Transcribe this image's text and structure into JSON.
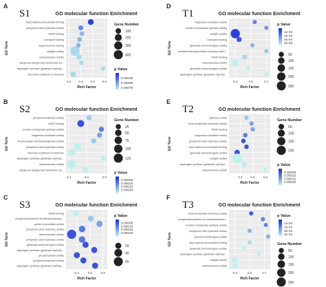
{
  "colors": {
    "panel_bg": "#ebebeb",
    "grid": "#ffffff",
    "pvalue_low": "#1a2bd4",
    "pvalue_high": "#bff0ef",
    "text": "#333333"
  },
  "chart_data": [
    {
      "type": "scatter",
      "panel": "A",
      "sample": "S1",
      "title": "GO molecular function Enrichment",
      "xlabel": "Rich Factor",
      "ylabel": "GO Term",
      "xlim": [
        0.15,
        0.85
      ],
      "xticks": [
        "0.2",
        "0.4",
        "0.6",
        "0.8"
      ],
      "xtick_values": [
        0.2,
        0.4,
        0.6,
        0.8
      ],
      "categories": [
        "flavin adenine dinucleotide binding",
        "phosphoric ester hydrolase activity",
        "NADP binding",
        "coenzyme binding",
        "magnesium ion binding",
        "catalytic activity",
        "oxidoreductase activity",
        "xyloglucan:xyloglucosyl transferase act...",
        "asparagine synthase (glutamine-hydrolyz...",
        "structural constituent of ribosome"
      ],
      "points": [
        {
          "term": "flavin adenine dinucleotide binding",
          "rich_factor": 0.57,
          "gene_number": 120,
          "p_value": 0.0001
        },
        {
          "term": "phosphoric ester hydrolase activity",
          "rich_factor": 0.4,
          "gene_number": 70,
          "p_value": 0.0004
        },
        {
          "term": "NADP binding",
          "rich_factor": 0.42,
          "gene_number": 60,
          "p_value": 0.0006
        },
        {
          "term": "coenzyme binding",
          "rich_factor": 0.38,
          "gene_number": 60,
          "p_value": 0.0006
        },
        {
          "term": "magnesium ion binding",
          "rich_factor": 0.36,
          "gene_number": 60,
          "p_value": 0.0006
        },
        {
          "term": "catalytic activity",
          "rich_factor": 0.3,
          "gene_number": 430,
          "p_value": 0.00075
        },
        {
          "term": "oxidoreductase activity",
          "rich_factor": 0.37,
          "gene_number": 80,
          "p_value": 0.00075
        },
        {
          "term": "xyloglucan:xyloglucosyl transferase act...",
          "rich_factor": 0.41,
          "gene_number": 50,
          "p_value": 0.00075
        },
        {
          "term": "asparagine synthase (glutamine-hydrolyz...",
          "rich_factor": 0.78,
          "gene_number": 40,
          "p_value": 0.00075
        },
        {
          "term": "structural constituent of ribosome",
          "rich_factor": 0.27,
          "gene_number": 100,
          "p_value": 0.00075
        }
      ],
      "legend_order": [
        "size",
        "color"
      ],
      "size_legend": {
        "title": "Gene Number",
        "labels": [
          "100",
          "200",
          "300",
          "400"
        ],
        "values": [
          100,
          200,
          300,
          400
        ]
      },
      "color_legend": {
        "title": "p Value",
        "labels": [
          "0.00075",
          "0.00050",
          "0.00025"
        ],
        "values": [
          0.00075,
          0.0005,
          0.00025
        ],
        "range": [
          0,
          0.00085
        ]
      }
    },
    {
      "type": "scatter",
      "panel": "B",
      "sample": "S2",
      "title": "GO molecular function Enrichment",
      "xlabel": "Rich Factor",
      "ylabel": "GO Term",
      "xlim": [
        0.25,
        0.95
      ],
      "xticks": [
        "0.3",
        "0.6",
        "0.9"
      ],
      "xtick_values": [
        0.3,
        0.6,
        0.9
      ],
      "categories": [
        "phosphofructokinase activity",
        "NADP binding",
        "inositol-3-phosphate synthase activity",
        "magnesium chelatase activity",
        "3-hydroxyacyl-CoA dehydrogenase activity",
        "phosphoric ester hydrolase activity",
        "structural constituent of ribosome",
        "asparagine synthase (glutamine-hydrolyz...",
        "oxidoreductase activity",
        "xyloglucan:xyloglucosyl transferase act..."
      ],
      "points": [
        {
          "term": "phosphofructokinase activity",
          "rich_factor": 0.64,
          "gene_number": 25,
          "p_value": 0.0002
        },
        {
          "term": "NADP binding",
          "rich_factor": 0.5,
          "gene_number": 60,
          "p_value": 5e-05
        },
        {
          "term": "inositol-3-phosphate synthase activity",
          "rich_factor": 0.85,
          "gene_number": 25,
          "p_value": 0.0001
        },
        {
          "term": "magnesium chelatase activity",
          "rich_factor": 0.82,
          "gene_number": 25,
          "p_value": 0.00015
        },
        {
          "term": "3-hydroxyacyl-CoA dehydrogenase activity",
          "rich_factor": 0.72,
          "gene_number": 25,
          "p_value": 0.0002
        },
        {
          "term": "phosphoric ester hydrolase activity",
          "rich_factor": 0.45,
          "gene_number": 60,
          "p_value": 0.00025
        },
        {
          "term": "structural constituent of ribosome",
          "rich_factor": 0.35,
          "gene_number": 70,
          "p_value": 0.00025
        },
        {
          "term": "asparagine synthase (glutamine-hydrolyz...",
          "rich_factor": 0.88,
          "gene_number": 25,
          "p_value": 0.00025
        },
        {
          "term": "oxidoreductase activity",
          "rich_factor": 0.34,
          "gene_number": 125,
          "p_value": 0.00025
        },
        {
          "term": "xyloglucan:xyloglucosyl transferase act...",
          "rich_factor": 0.58,
          "gene_number": 40,
          "p_value": 0.00025
        }
      ],
      "legend_order": [
        "size",
        "color"
      ],
      "size_legend": {
        "title": "Gene Number",
        "labels": [
          "25",
          "50",
          "75",
          "100",
          "125"
        ],
        "values": [
          25,
          50,
          75,
          100,
          125
        ]
      },
      "color_legend": {
        "title": "p Value",
        "labels": [
          "0.00020",
          "0.00015",
          "0.00010",
          "0.00005"
        ],
        "values": [
          0.0002,
          0.00015,
          0.0001,
          5e-05
        ],
        "range": [
          0,
          0.00025
        ]
      }
    },
    {
      "type": "scatter",
      "panel": "C",
      "sample": "S3",
      "title": "GO molecular function Enrichment",
      "xlabel": "Rich Factor",
      "ylabel": "GO Term",
      "xlim": [
        0.05,
        1.0
      ],
      "xticks": [
        "0.3",
        "0.6",
        "0.9"
      ],
      "xtick_values": [
        0.3,
        0.6,
        0.9
      ],
      "categories": [
        "NADP binding",
        "phosphoribosylamine-N-methyltransferase...",
        "purine homeostasis activity",
        "phosphoric ester hydrolase activity",
        "oxidoreductase activity",
        "phosphoric ester hydrolase activity",
        "glutamate-ammonia ligase activity",
        "asparagine synthase (glutamine-hydrolyz...",
        "phosphoprotein activity",
        "phosphofructokinase activity",
        "asparagine synthase (glutamine-hydrolyz..."
      ],
      "points": [
        {
          "term": "NADP binding",
          "rich_factor": 0.28,
          "gene_number": 25,
          "p_value": 0.00025
        },
        {
          "term": "phosphoribosylamine-N-methyltransferase...",
          "rich_factor": 0.62,
          "gene_number": 20,
          "p_value": 0.0002
        },
        {
          "term": "purine homeostasis activity",
          "rich_factor": 0.82,
          "gene_number": 20,
          "p_value": 0.00015
        },
        {
          "term": "phosphoric ester hydrolase activity",
          "rich_factor": 0.42,
          "gene_number": 25,
          "p_value": 0.0001
        },
        {
          "term": "oxidoreductase activity",
          "rich_factor": 0.18,
          "gene_number": 60,
          "p_value": 5e-05
        },
        {
          "term": "phosphoric ester hydrolase activity",
          "rich_factor": 0.42,
          "gene_number": 25,
          "p_value": 0.0001
        },
        {
          "term": "glutamate-ammonia ligase activity",
          "rich_factor": 0.5,
          "gene_number": 20,
          "p_value": 5e-05
        },
        {
          "term": "asparagine synthase (glutamine-hydrolyz...",
          "rich_factor": 0.7,
          "gene_number": 20,
          "p_value": 5e-05
        },
        {
          "term": "phosphoprotein activity",
          "rich_factor": 0.3,
          "gene_number": 20,
          "p_value": 5e-05
        },
        {
          "term": "phosphofructokinase activity",
          "rich_factor": 0.45,
          "gene_number": 20,
          "p_value": 5e-05
        },
        {
          "term": "asparagine synthase (glutamine-hydrolyz...",
          "rich_factor": 0.72,
          "gene_number": 20,
          "p_value": 5e-05
        }
      ],
      "legend_order": [
        "color",
        "size"
      ],
      "size_legend": {
        "title": "",
        "labels": [
          "20",
          "40",
          "60"
        ],
        "values": [
          20,
          40,
          60
        ]
      },
      "color_legend": {
        "title": "p Value",
        "labels": [
          "0.00020",
          "0.00015",
          "0.00010",
          "0.00005"
        ],
        "values": [
          0.0002,
          0.00015,
          0.0001,
          5e-05
        ],
        "range": [
          0,
          0.00025
        ]
      }
    },
    {
      "type": "scatter",
      "panel": "D",
      "sample": "T1",
      "title": "GO molecular function Enrichment",
      "xlabel": "Rich Factor",
      "ylabel": "GO Term",
      "xlim": [
        0.22,
        0.75
      ],
      "xticks": [
        "0.3",
        "0.5",
        "0.7"
      ],
      "xtick_values": [
        0.3,
        0.5,
        0.7
      ],
      "categories": [
        "magnesium chelatase activity",
        "inositol-3-phosphate synthase activity",
        "catalytic activity",
        "coenzyme binding",
        "glutamate-ammonia ligase activity",
        "methylenetetrahydrofolate reductase (NAD...",
        "NADP binding",
        "oxidoreductase activity",
        "glutamate-ammonia ligase activity",
        "asparagine synthase (glutamine-hydrolyz..."
      ],
      "points": [
        {
          "term": "magnesium chelatase activity",
          "rich_factor": 0.55,
          "gene_number": 25,
          "p_value": 0.0002
        },
        {
          "term": "inositol-3-phosphate synthase activity",
          "rich_factor": 0.7,
          "gene_number": 25,
          "p_value": 0.00025
        },
        {
          "term": "catalytic activity",
          "rich_factor": 0.3,
          "gene_number": 260,
          "p_value": 5e-05
        },
        {
          "term": "coenzyme binding",
          "rich_factor": 0.35,
          "gene_number": 50,
          "p_value": 0.0001
        },
        {
          "term": "glutamate-ammonia ligase activity",
          "rich_factor": 0.52,
          "gene_number": 25,
          "p_value": 0.0003
        },
        {
          "term": "methylenetetrahydrofolate reductase (NAD...",
          "rich_factor": 0.7,
          "gene_number": 25,
          "p_value": 0.00035
        },
        {
          "term": "NADP binding",
          "rich_factor": 0.42,
          "gene_number": 50,
          "p_value": 0.0004
        },
        {
          "term": "oxidoreductase activity",
          "rich_factor": 0.3,
          "gene_number": 120,
          "p_value": 0.00045
        },
        {
          "term": "glutamate-ammonia ligase activity",
          "rich_factor": 0.47,
          "gene_number": 25,
          "p_value": 0.00045
        },
        {
          "term": "asparagine synthase (glutamine-hydrolyz...",
          "rich_factor": 0.7,
          "gene_number": 25,
          "p_value": 0.00045
        }
      ],
      "legend_order": [
        "color",
        "size"
      ],
      "size_legend": {
        "title": "",
        "labels": [
          "50",
          "100",
          "150",
          "200",
          "250"
        ],
        "values": [
          50,
          100,
          150,
          200,
          250
        ]
      },
      "color_legend": {
        "title": "p Value",
        "labels": [
          "4e-04",
          "3e-04",
          "2e-04",
          "1e-04"
        ],
        "values": [
          0.0004,
          0.0003,
          0.0002,
          0.0001
        ],
        "range": [
          0,
          0.00045
        ]
      }
    },
    {
      "type": "scatter",
      "panel": "E",
      "sample": "T2",
      "title": "GO molecular function Enrichment",
      "xlabel": "Rich Factor",
      "ylabel": "GO Term",
      "xlim": [
        0.22,
        0.88
      ],
      "xticks": [
        "0.4",
        "0.6",
        "0.8"
      ],
      "xtick_values": [
        0.4,
        0.6,
        0.8
      ],
      "categories": [
        "chitinase activity",
        "triose-phosphate isomerase activity",
        "NADP binding",
        "magnesium chelatase activity",
        "phosphoric ester hydrolase activity",
        "flavin adenine dinucleotide binding",
        "glutamate-ammonia ligase activity",
        "catalytic activity",
        "asparagine synthase (glutamine-hydrolyz...",
        "oxidoreductase activity"
      ],
      "points": [
        {
          "term": "chitinase activity",
          "rich_factor": 0.5,
          "gene_number": 25,
          "p_value": 0.0002
        },
        {
          "term": "triose-phosphate isomerase activity",
          "rich_factor": 0.58,
          "gene_number": 25,
          "p_value": 0.00015
        },
        {
          "term": "NADP binding",
          "rich_factor": 0.6,
          "gene_number": 25,
          "p_value": 0.00015
        },
        {
          "term": "magnesium chelatase activity",
          "rich_factor": 0.48,
          "gene_number": 25,
          "p_value": 0.0001
        },
        {
          "term": "phosphoric ester hydrolase activity",
          "rich_factor": 0.45,
          "gene_number": 25,
          "p_value": 5e-05
        },
        {
          "term": "flavin adenine dinucleotide binding",
          "rich_factor": 0.5,
          "gene_number": 25,
          "p_value": 5e-05
        },
        {
          "term": "glutamate-ammonia ligase activity",
          "rich_factor": 0.35,
          "gene_number": 50,
          "p_value": 5e-05
        },
        {
          "term": "catalytic activity",
          "rich_factor": 0.35,
          "gene_number": 230,
          "p_value": 0.00025
        },
        {
          "term": "asparagine synthase (glutamine-hydrolyz...",
          "rich_factor": 0.46,
          "gene_number": 50,
          "p_value": 0.00025
        },
        {
          "term": "oxidoreductase activity",
          "rich_factor": 0.8,
          "gene_number": 25,
          "p_value": 0.00025
        }
      ],
      "legend_order": [
        "size",
        "color"
      ],
      "size_legend": {
        "title": "Gene Number",
        "labels": [
          "50",
          "100",
          "150",
          "200"
        ],
        "values": [
          50,
          100,
          150,
          200
        ]
      },
      "color_legend": {
        "title": "p Value",
        "labels": [
          "0.00020",
          "0.00015",
          "0.00010",
          "0.00005"
        ],
        "values": [
          0.0002,
          0.00015,
          0.0001,
          5e-05
        ],
        "range": [
          0,
          0.00025
        ]
      }
    },
    {
      "type": "scatter",
      "panel": "F",
      "sample": "T3",
      "title": "GO molecular function Enrichment",
      "xlabel": "Rich Factor",
      "ylabel": "GO Term",
      "xlim": [
        0.22,
        0.78
      ],
      "xticks": [
        "0.3",
        "0.5",
        "0.7"
      ],
      "xtick_values": [
        0.3,
        0.5,
        0.7
      ],
      "categories": [
        "triose-phosphate isomerase activity",
        "phosphoribosylamine-N-methyltransferase...",
        "inositol-3-phosphate synthase activity",
        "phosphoric ester hydrolase activity",
        "isoleucine-tRNA ligase activity",
        "flavin adenine dinucleotide binding",
        "glutamate-ammonia ligase activity",
        "asparagine synthase (glutamine-hydrolyz...",
        "catalytic activity",
        "oxidoreductase activity"
      ],
      "points": [
        {
          "term": "triose-phosphate isomerase activity",
          "rich_factor": 0.52,
          "gene_number": 25,
          "p_value": 0.0001
        },
        {
          "term": "phosphoribosylamine-N-methyltransferase...",
          "rich_factor": 0.68,
          "gene_number": 25,
          "p_value": 0.0002
        },
        {
          "term": "inositol-3-phosphate synthase activity",
          "rich_factor": 0.72,
          "gene_number": 25,
          "p_value": 0.0002
        },
        {
          "term": "phosphoric ester hydrolase activity",
          "rich_factor": 0.5,
          "gene_number": 25,
          "p_value": 0.0003
        },
        {
          "term": "isoleucine-tRNA ligase activity",
          "rich_factor": 0.75,
          "gene_number": 25,
          "p_value": 0.0003
        },
        {
          "term": "flavin adenine dinucleotide binding",
          "rich_factor": 0.5,
          "gene_number": 25,
          "p_value": 0.0004
        },
        {
          "term": "glutamate-ammonia ligase activity",
          "rich_factor": 0.42,
          "gene_number": 25,
          "p_value": 0.00045
        },
        {
          "term": "asparagine synthase (glutamine-hydrolyz...",
          "rich_factor": 0.62,
          "gene_number": 25,
          "p_value": 0.00045
        },
        {
          "term": "catalytic activity",
          "rich_factor": 0.29,
          "gene_number": 60,
          "p_value": 0.00045
        },
        {
          "term": "oxidoreductase activity",
          "rich_factor": 0.3,
          "gene_number": 50,
          "p_value": 0.00045
        }
      ],
      "legend_order": [
        "color",
        "size"
      ],
      "size_legend": {
        "title": "Gene Number",
        "labels": [
          "50",
          "100",
          "150",
          "200",
          "250"
        ],
        "values": [
          50,
          100,
          150,
          200,
          250
        ]
      },
      "color_legend": {
        "title": "p Value",
        "labels": [
          "4e-04",
          "3e-04",
          "2e-04",
          "1e-04"
        ],
        "values": [
          0.0004,
          0.0003,
          0.0002,
          0.0001
        ],
        "range": [
          0,
          0.00045
        ]
      }
    }
  ]
}
